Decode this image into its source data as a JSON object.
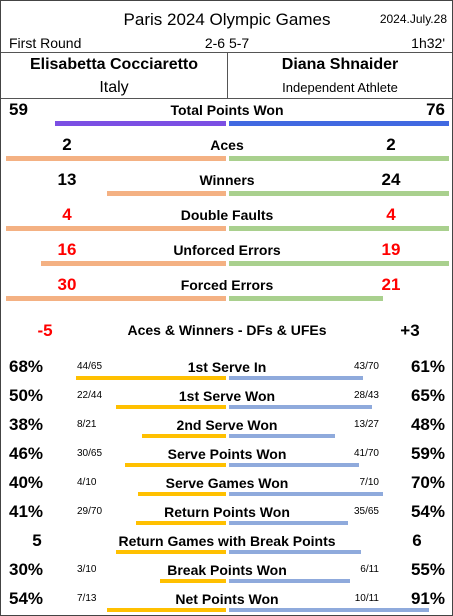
{
  "header": {
    "title": "Paris 2024 Olympic Games",
    "date": "2024.July.28",
    "round": "First Round",
    "score": "2-6 5-7",
    "duration": "1h32'"
  },
  "players": {
    "left": {
      "name": "Elisabetta Cocciaretto",
      "country": "Italy"
    },
    "right": {
      "name": "Diana Shnaider",
      "country": "Independent Athlete"
    }
  },
  "colors": {
    "left_primary": "#7b4fe3",
    "right_primary": "#4169e1",
    "left_bar": "#f4b183",
    "right_bar": "#a9d08e",
    "left_serve": "#ffc000",
    "right_serve": "#8faadc",
    "red_text": "#ff0000"
  },
  "main_stats": [
    {
      "label": "Total Points Won",
      "left": "59",
      "right": "76",
      "left_value": 59,
      "right_value": 76
    },
    {
      "label": "Aces",
      "left": "2",
      "right": "2",
      "left_value": 2,
      "right_value": 2
    },
    {
      "label": "Winners",
      "left": "13",
      "right": "24",
      "left_value": 13,
      "right_value": 24
    },
    {
      "label": "Double Faults",
      "left": "4",
      "right": "4",
      "left_value": 4,
      "right_value": 4
    },
    {
      "label": "Unforced Errors",
      "left": "16",
      "right": "19",
      "left_value": 16,
      "right_value": 19
    },
    {
      "label": "Forced Errors",
      "left": "30",
      "right": "21",
      "left_value": 30,
      "right_value": 21
    }
  ],
  "summary": {
    "label": "Aces & Winners - DFs & UFEs",
    "left": "-5",
    "right": "+3"
  },
  "serve_stats": [
    {
      "label": "1st Serve In",
      "left_pct": "68%",
      "left_frac": "44/65",
      "right_pct": "61%",
      "right_frac": "43/70",
      "left_value": 0.68,
      "right_value": 0.61
    },
    {
      "label": "1st Serve Won",
      "left_pct": "50%",
      "left_frac": "22/44",
      "right_pct": "65%",
      "right_frac": "28/43",
      "left_value": 0.5,
      "right_value": 0.65
    },
    {
      "label": "2nd Serve Won",
      "left_pct": "38%",
      "left_frac": "8/21",
      "right_pct": "48%",
      "right_frac": "13/27",
      "left_value": 0.38,
      "right_value": 0.48
    },
    {
      "label": "Serve Points Won",
      "left_pct": "46%",
      "left_frac": "30/65",
      "right_pct": "59%",
      "right_frac": "41/70",
      "left_value": 0.46,
      "right_value": 0.59
    },
    {
      "label": "Serve Games Won",
      "left_pct": "40%",
      "left_frac": "4/10",
      "right_pct": "70%",
      "right_frac": "7/10",
      "left_value": 0.4,
      "right_value": 0.7
    },
    {
      "label": "Return Points Won",
      "left_pct": "41%",
      "left_frac": "29/70",
      "right_pct": "54%",
      "right_frac": "35/65",
      "left_value": 0.41,
      "right_value": 0.54
    },
    {
      "label": "Return Games with Break Points",
      "left_pct": "5",
      "left_frac": "",
      "right_pct": "6",
      "right_frac": "",
      "left_value": 0.5,
      "right_value": 0.6
    },
    {
      "label": "Break Points Won",
      "left_pct": "30%",
      "left_frac": "3/10",
      "right_pct": "55%",
      "right_frac": "6/11",
      "left_value": 0.3,
      "right_value": 0.55
    },
    {
      "label": "Net Points Won",
      "left_pct": "54%",
      "left_frac": "7/13",
      "right_pct": "91%",
      "right_frac": "10/11",
      "left_value": 0.54,
      "right_value": 0.91
    }
  ]
}
